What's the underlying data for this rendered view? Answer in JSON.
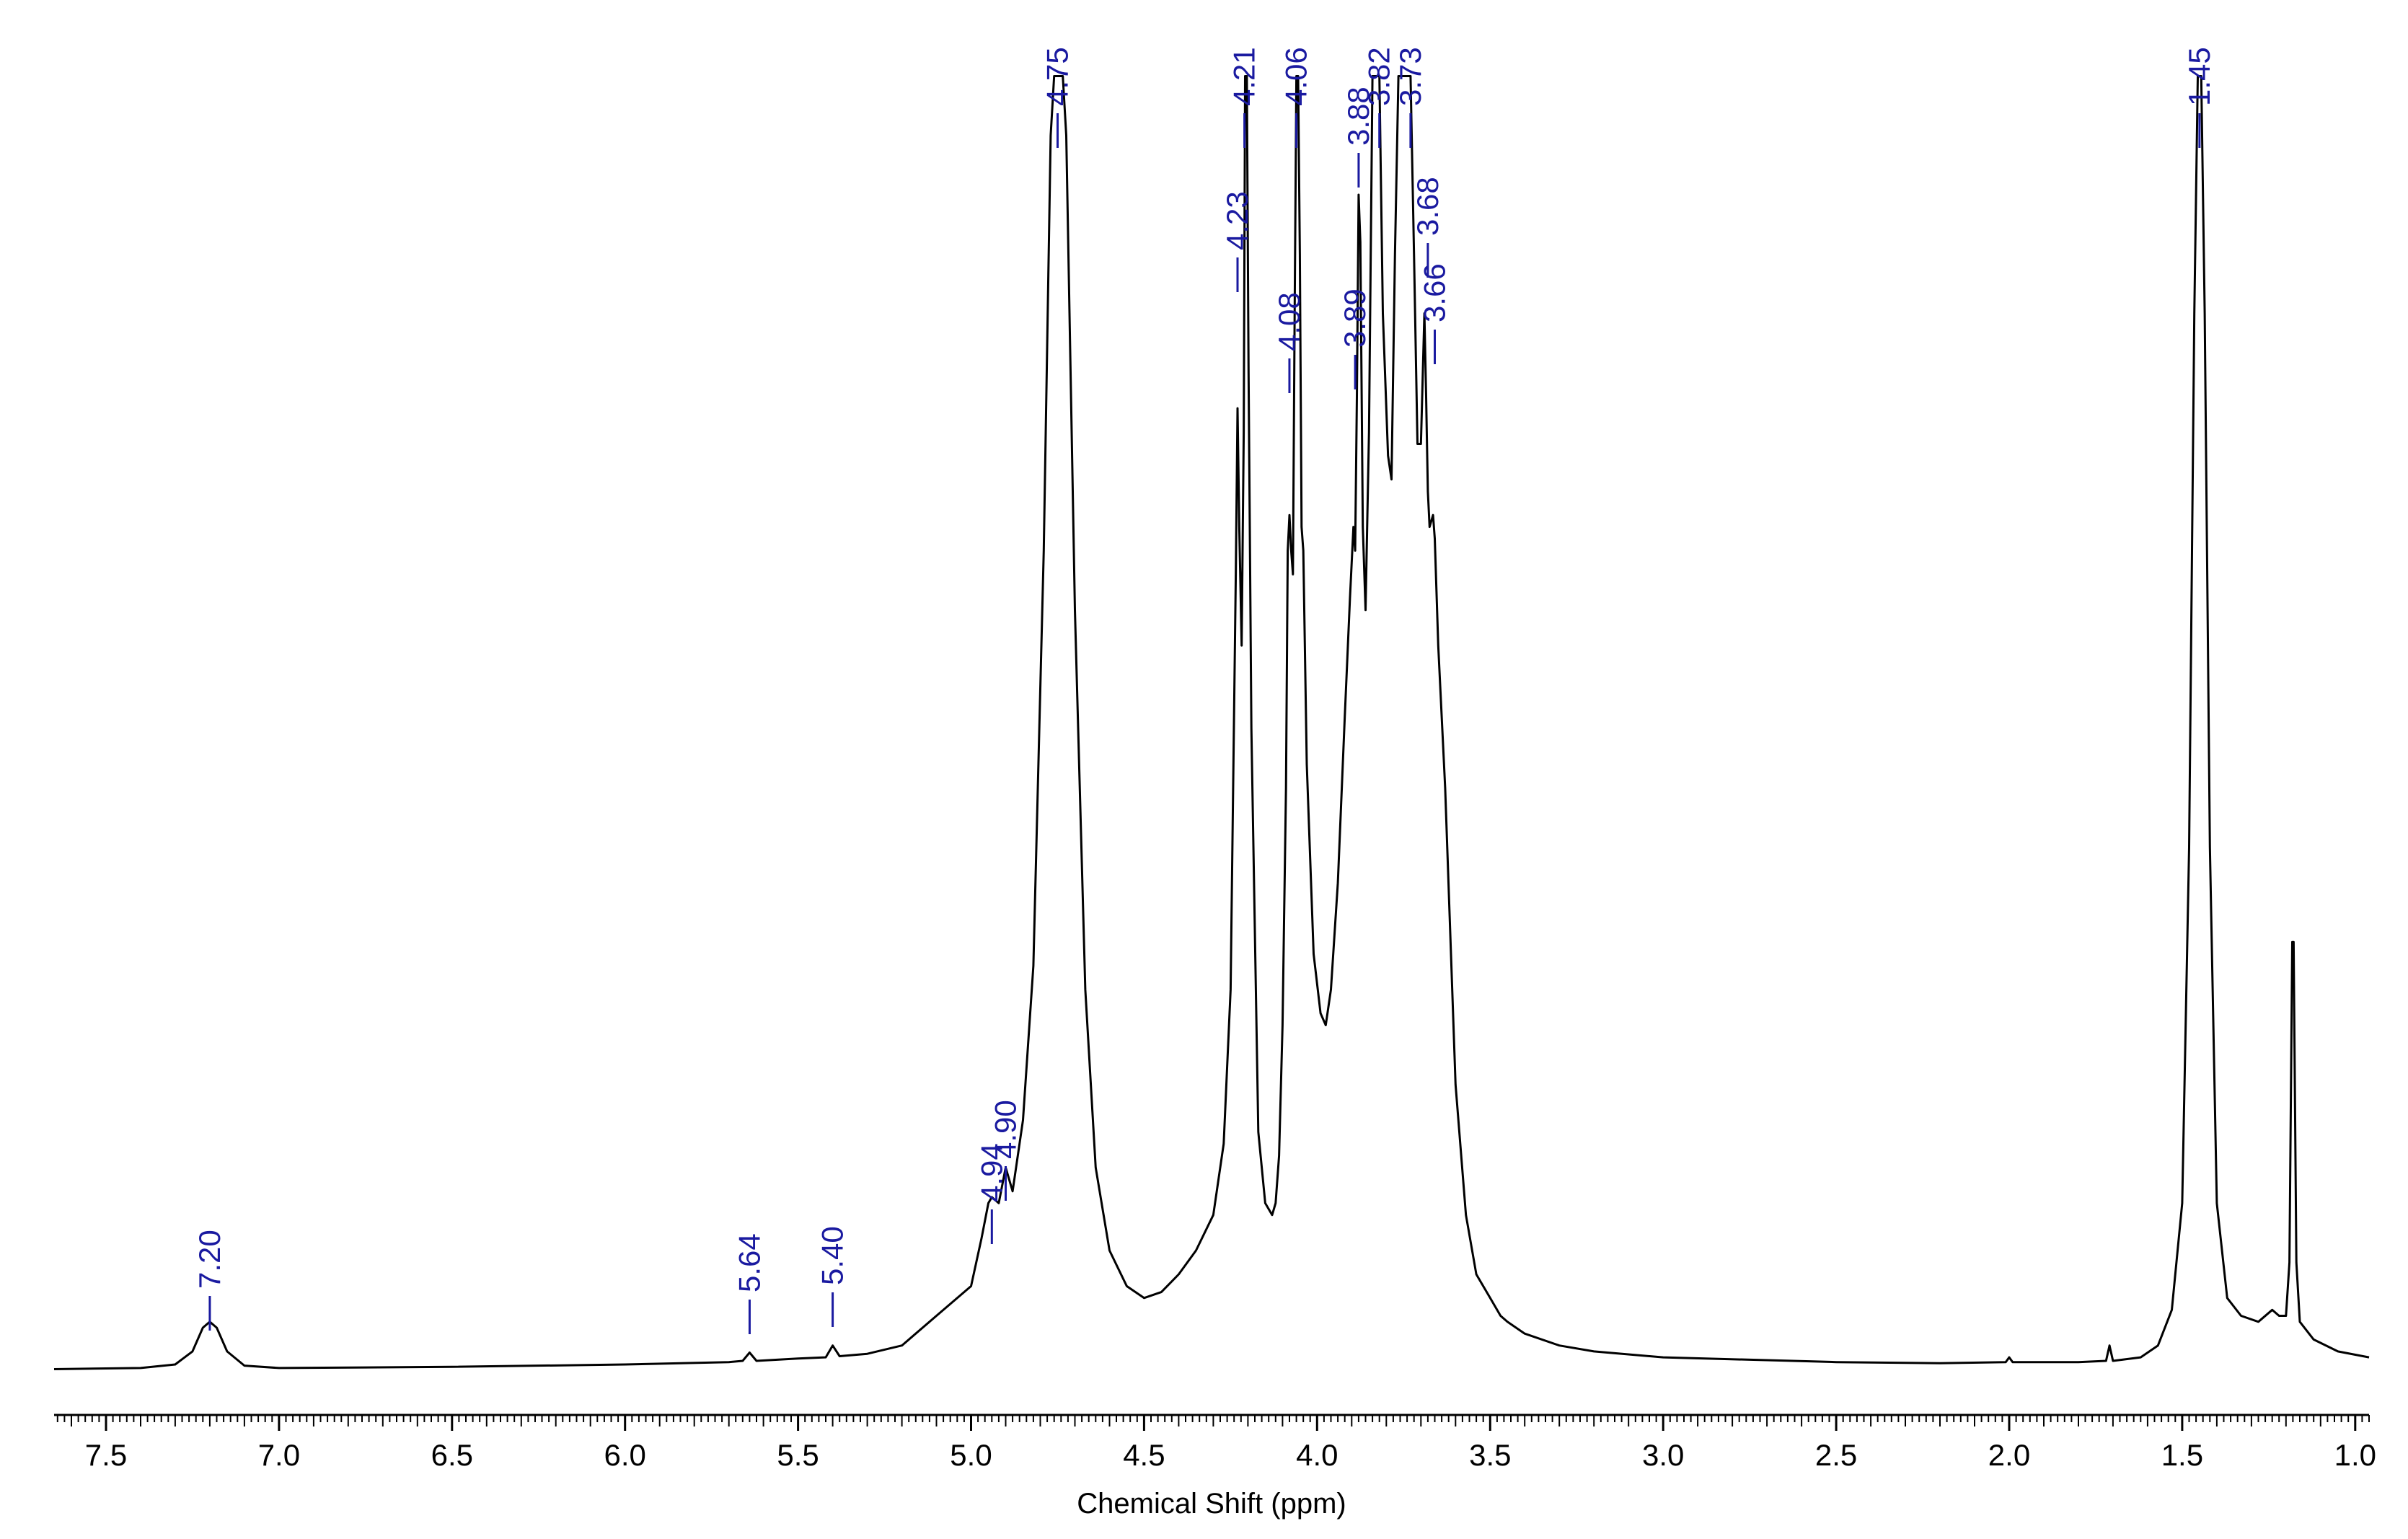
{
  "chart_data": {
    "type": "line",
    "xlabel": "Chemical Shift (ppm)",
    "ylabel": "",
    "xlim": [
      7.65,
      0.96
    ],
    "x_reversed": true,
    "x_ticks": [
      "7.5",
      "7.0",
      "6.5",
      "6.0",
      "5.5",
      "5.0",
      "4.5",
      "4.0",
      "3.5",
      "3.0",
      "2.5",
      "2.0",
      "1.5",
      "1.0"
    ],
    "grid": false,
    "legend": "none",
    "colors": {
      "spectrum": "#000000",
      "labels": "#1a1aa0",
      "axis": "#000000"
    },
    "series": [
      {
        "points": [
          [
            7.65,
            0.01
          ],
          [
            7.4,
            0.011
          ],
          [
            7.3,
            0.014
          ],
          [
            7.25,
            0.025
          ],
          [
            7.22,
            0.045
          ],
          [
            7.2,
            0.05
          ],
          [
            7.18,
            0.045
          ],
          [
            7.15,
            0.025
          ],
          [
            7.1,
            0.013
          ],
          [
            7.0,
            0.011
          ],
          [
            6.5,
            0.012
          ],
          [
            6.0,
            0.014
          ],
          [
            5.7,
            0.016
          ],
          [
            5.66,
            0.017
          ],
          [
            5.64,
            0.024
          ],
          [
            5.62,
            0.017
          ],
          [
            5.5,
            0.019
          ],
          [
            5.42,
            0.02
          ],
          [
            5.4,
            0.03
          ],
          [
            5.38,
            0.021
          ],
          [
            5.3,
            0.023
          ],
          [
            5.2,
            0.03
          ],
          [
            5.1,
            0.055
          ],
          [
            5.0,
            0.08
          ],
          [
            4.97,
            0.12
          ],
          [
            4.95,
            0.15
          ],
          [
            4.94,
            0.155
          ],
          [
            4.92,
            0.15
          ],
          [
            4.9,
            0.18
          ],
          [
            4.88,
            0.16
          ],
          [
            4.85,
            0.22
          ],
          [
            4.82,
            0.35
          ],
          [
            4.79,
            0.7
          ],
          [
            4.77,
            1.05
          ],
          [
            4.76,
            1.1
          ],
          [
            4.745,
            1.1
          ],
          [
            4.735,
            1.1
          ],
          [
            4.725,
            1.05
          ],
          [
            4.7,
            0.65
          ],
          [
            4.67,
            0.33
          ],
          [
            4.64,
            0.18
          ],
          [
            4.6,
            0.11
          ],
          [
            4.55,
            0.08
          ],
          [
            4.5,
            0.07
          ],
          [
            4.45,
            0.075
          ],
          [
            4.4,
            0.09
          ],
          [
            4.35,
            0.11
          ],
          [
            4.3,
            0.14
          ],
          [
            4.27,
            0.2
          ],
          [
            4.25,
            0.33
          ],
          [
            4.235,
            0.68
          ],
          [
            4.23,
            0.82
          ],
          [
            4.225,
            0.72
          ],
          [
            4.218,
            0.62
          ],
          [
            4.212,
            0.8
          ],
          [
            4.208,
            1.1
          ],
          [
            4.203,
            1.1
          ],
          [
            4.198,
            0.85
          ],
          [
            4.19,
            0.55
          ],
          [
            4.17,
            0.21
          ],
          [
            4.15,
            0.15
          ],
          [
            4.14,
            0.145
          ],
          [
            4.13,
            0.14
          ],
          [
            4.12,
            0.15
          ],
          [
            4.11,
            0.19
          ],
          [
            4.1,
            0.3
          ],
          [
            4.09,
            0.5
          ],
          [
            4.085,
            0.7
          ],
          [
            4.08,
            0.73
          ],
          [
            4.075,
            0.7
          ],
          [
            4.07,
            0.68
          ],
          [
            4.065,
            0.9
          ],
          [
            4.06,
            1.1
          ],
          [
            4.055,
            1.1
          ],
          [
            4.05,
            0.95
          ],
          [
            4.045,
            0.72
          ],
          [
            4.04,
            0.7
          ],
          [
            4.03,
            0.52
          ],
          [
            4.01,
            0.36
          ],
          [
            3.99,
            0.31
          ],
          [
            3.975,
            0.3
          ],
          [
            3.96,
            0.33
          ],
          [
            3.94,
            0.42
          ],
          [
            3.92,
            0.56
          ],
          [
            3.905,
            0.66
          ],
          [
            3.895,
            0.72
          ],
          [
            3.89,
            0.7
          ],
          [
            3.885,
            0.83
          ],
          [
            3.88,
            1.0
          ],
          [
            3.875,
            0.96
          ],
          [
            3.868,
            0.72
          ],
          [
            3.86,
            0.65
          ],
          [
            3.85,
            0.8
          ],
          [
            3.84,
            1.1
          ],
          [
            3.83,
            1.1
          ],
          [
            3.82,
            1.1
          ],
          [
            3.81,
            0.9
          ],
          [
            3.795,
            0.78
          ],
          [
            3.785,
            0.76
          ],
          [
            3.775,
            0.95
          ],
          [
            3.765,
            1.1
          ],
          [
            3.74,
            1.1
          ],
          [
            3.73,
            1.1
          ],
          [
            3.72,
            0.95
          ],
          [
            3.71,
            0.79
          ],
          [
            3.7,
            0.79
          ],
          [
            3.69,
            0.9
          ],
          [
            3.685,
            0.83
          ],
          [
            3.68,
            0.75
          ],
          [
            3.675,
            0.72
          ],
          [
            3.665,
            0.73
          ],
          [
            3.66,
            0.71
          ],
          [
            3.65,
            0.62
          ],
          [
            3.63,
            0.5
          ],
          [
            3.6,
            0.25
          ],
          [
            3.57,
            0.14
          ],
          [
            3.54,
            0.09
          ],
          [
            3.5,
            0.07
          ],
          [
            3.47,
            0.055
          ],
          [
            3.45,
            0.05
          ],
          [
            3.4,
            0.04
          ],
          [
            3.3,
            0.03
          ],
          [
            3.2,
            0.025
          ],
          [
            3.0,
            0.02
          ],
          [
            2.5,
            0.016
          ],
          [
            2.2,
            0.015
          ],
          [
            2.01,
            0.016
          ],
          [
            2.0,
            0.02
          ],
          [
            1.99,
            0.016
          ],
          [
            1.8,
            0.016
          ],
          [
            1.72,
            0.017
          ],
          [
            1.71,
            0.03
          ],
          [
            1.7,
            0.017
          ],
          [
            1.62,
            0.02
          ],
          [
            1.57,
            0.03
          ],
          [
            1.53,
            0.06
          ],
          [
            1.5,
            0.15
          ],
          [
            1.48,
            0.45
          ],
          [
            1.465,
            0.9
          ],
          [
            1.455,
            1.1
          ],
          [
            1.445,
            1.1
          ],
          [
            1.435,
            0.9
          ],
          [
            1.42,
            0.45
          ],
          [
            1.4,
            0.15
          ],
          [
            1.37,
            0.07
          ],
          [
            1.33,
            0.055
          ],
          [
            1.28,
            0.05
          ],
          [
            1.24,
            0.06
          ],
          [
            1.22,
            0.055
          ],
          [
            1.2,
            0.055
          ],
          [
            1.19,
            0.1
          ],
          [
            1.182,
            0.37
          ],
          [
            1.178,
            0.37
          ],
          [
            1.17,
            0.1
          ],
          [
            1.16,
            0.05
          ],
          [
            1.12,
            0.035
          ],
          [
            1.05,
            0.025
          ],
          [
            0.96,
            0.02
          ]
        ]
      }
    ],
    "peak_labels": [
      {
        "text": "7.20",
        "x": 7.2
      },
      {
        "text": "5.64",
        "x": 5.64
      },
      {
        "text": "5.40",
        "x": 5.4
      },
      {
        "text": "4.94",
        "x": 4.94
      },
      {
        "text": "4.90",
        "x": 4.9
      },
      {
        "text": "4.75",
        "x": 4.75
      },
      {
        "text": "4.23",
        "x": 4.23
      },
      {
        "text": "4.21",
        "x": 4.21
      },
      {
        "text": "4.08",
        "x": 4.08
      },
      {
        "text": "4.06",
        "x": 4.06
      },
      {
        "text": "3.89",
        "x": 3.89
      },
      {
        "text": "3.88",
        "x": 3.88
      },
      {
        "text": "3.82",
        "x": 3.82
      },
      {
        "text": "3.73",
        "x": 3.73
      },
      {
        "text": "3.68",
        "x": 3.68
      },
      {
        "text": "3.66",
        "x": 3.66
      },
      {
        "text": "1.45",
        "x": 1.45
      }
    ]
  }
}
